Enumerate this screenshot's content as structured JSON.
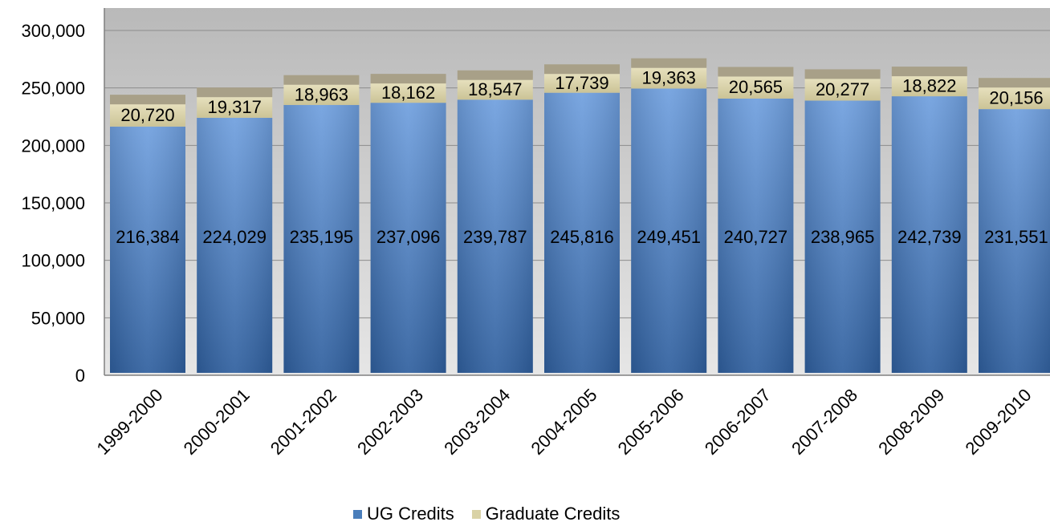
{
  "chart_data": {
    "type": "bar",
    "stacked": true,
    "categories": [
      "1999-2000",
      "2000-2001",
      "2001-2002",
      "2002-2003",
      "2003-2004",
      "2004-2005",
      "2005-2006",
      "2006-2007",
      "2007-2008",
      "2008-2009",
      "2009-2010"
    ],
    "series": [
      {
        "name": "UG Credits",
        "values": [
          216384,
          224029,
          235195,
          237096,
          239787,
          245816,
          249451,
          240727,
          238965,
          242739,
          231551
        ],
        "labels": [
          "216,384",
          "224,029",
          "235,195",
          "237,096",
          "239,787",
          "245,816",
          "249,451",
          "240,727",
          "238,965",
          "242,739",
          "231,551"
        ],
        "color": "#4a7ebb"
      },
      {
        "name": "Graduate Credits",
        "values": [
          20720,
          19317,
          18963,
          18162,
          18547,
          17739,
          19363,
          20565,
          20277,
          18822,
          20156
        ],
        "labels": [
          "20,720",
          "19,317",
          "18,963",
          "18,162",
          "18,547",
          "17,739",
          "19,363",
          "20,565",
          "20,277",
          "18,822",
          "20,156"
        ],
        "color": "#d9d2a6"
      }
    ],
    "ylim": [
      0,
      300000
    ],
    "yticks": [
      0,
      50000,
      100000,
      150000,
      200000,
      250000,
      300000
    ],
    "ytick_labels": [
      "0",
      "50,000",
      "100,000",
      "150,000",
      "200,000",
      "250,000",
      "300,000"
    ],
    "grid": true,
    "legend_position": "bottom",
    "title": "",
    "xlabel": "",
    "ylabel": ""
  }
}
